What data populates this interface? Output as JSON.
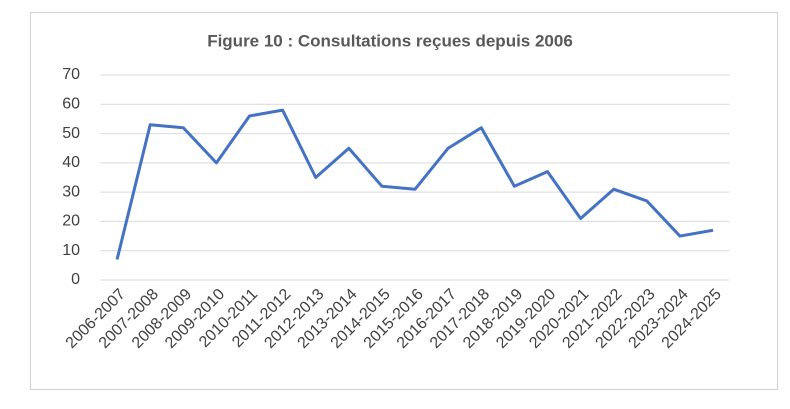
{
  "chart_data": {
    "type": "line",
    "title": "Figure 10 : Consultations reçues depuis 2006",
    "categories": [
      "2006-2007",
      "2007-2008",
      "2008-2009",
      "2009-2010",
      "2010-2011",
      "2011-2012",
      "2012-2013",
      "2013-2014",
      "2014-2015",
      "2015-2016",
      "2016-2017",
      "2017-2018",
      "2018-2019",
      "2019-2020",
      "2020-2021",
      "2021-2022",
      "2022-2023",
      "2023-2024",
      "2024-2025"
    ],
    "series": [
      {
        "color": "#4472c4",
        "values": [
          7,
          53,
          52,
          40,
          56,
          58,
          35,
          45,
          32,
          31,
          45,
          52,
          32,
          37,
          21,
          31,
          27,
          15,
          17
        ]
      }
    ],
    "ylim": [
      0,
      70
    ],
    "yticks": [
      0,
      10,
      20,
      30,
      40,
      50,
      60,
      70
    ],
    "grid": true
  }
}
